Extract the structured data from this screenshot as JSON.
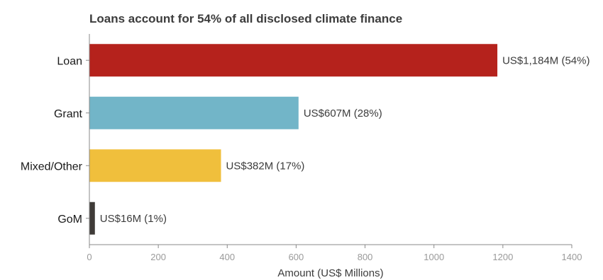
{
  "chart_data": {
    "type": "bar",
    "orientation": "horizontal",
    "title": "Loans account for 54% of all disclosed climate finance",
    "xlabel": "Amount (US$ Millions)",
    "ylabel": "",
    "xlim": [
      0,
      1400
    ],
    "xticks": [
      "0",
      "200",
      "400",
      "600",
      "800",
      "1000",
      "1200",
      "1400"
    ],
    "categories": [
      "Loan",
      "Grant",
      "Mixed/Other",
      "GoM"
    ],
    "values": [
      1184,
      607,
      382,
      16
    ],
    "data_labels": [
      "US$1,184M (54%)",
      "US$607M (28%)",
      "US$382M (17%)",
      "US$16M (1%)"
    ],
    "colors": [
      "#b5221c",
      "#72b5c8",
      "#f0bf3c",
      "#3f3b38"
    ],
    "grid": false,
    "legend": "none"
  }
}
